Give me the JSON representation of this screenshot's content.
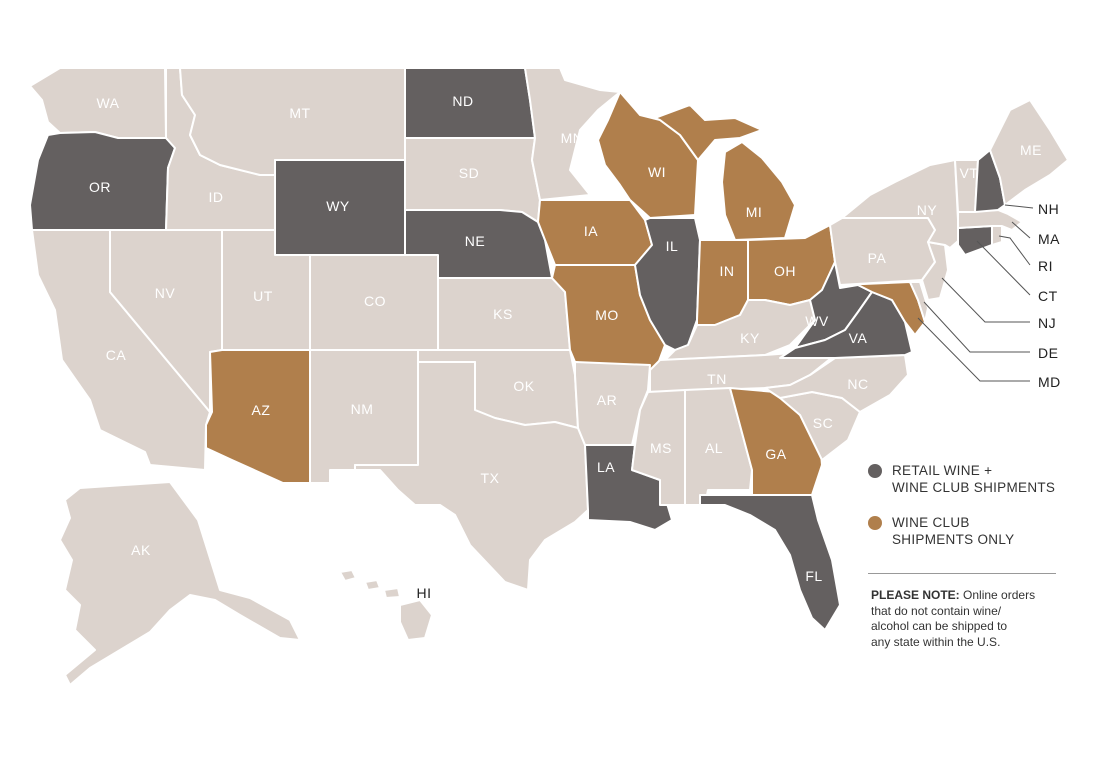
{
  "colors": {
    "none": "#dcd3cd",
    "retail": "#646060",
    "club": "#b07f4c"
  },
  "states": {
    "WA": "WA",
    "OR": "OR",
    "CA": "CA",
    "ID": "ID",
    "NV": "NV",
    "MT": "MT",
    "WY": "WY",
    "UT": "UT",
    "AZ": "AZ",
    "CO": "CO",
    "NM": "NM",
    "ND": "ND",
    "SD": "SD",
    "NE": "NE",
    "KS": "KS",
    "OK": "OK",
    "TX": "TX",
    "MN": "MN",
    "IA": "IA",
    "MO": "MO",
    "AR": "AR",
    "LA": "LA",
    "WI": "WI",
    "IL": "IL",
    "MI": "MI",
    "IN": "IN",
    "OH": "OH",
    "KY": "KY",
    "TN": "TN",
    "MS": "MS",
    "AL": "AL",
    "GA": "GA",
    "FL": "FL",
    "SC": "SC",
    "NC": "NC",
    "VA": "VA",
    "WV": "WV",
    "PA": "PA",
    "NY": "NY",
    "VT": "VT",
    "ME": "ME",
    "AK": "AK",
    "HI": "HI",
    "NH": "NH",
    "MA": "MA",
    "RI": "RI",
    "CT": "CT",
    "NJ": "NJ",
    "DE": "DE",
    "MD": "MD"
  },
  "status": {
    "retail": [
      "OR",
      "WY",
      "ND",
      "NE",
      "IL",
      "LA",
      "FL",
      "WV",
      "VA",
      "NH",
      "CT"
    ],
    "club": [
      "AZ",
      "IA",
      "MO",
      "WI",
      "MI",
      "IN",
      "OH",
      "GA",
      "MD"
    ]
  },
  "legend": {
    "retail_line1": "RETAIL WINE +",
    "retail_line2": "WINE CLUB SHIPMENTS",
    "club_line1": "WINE CLUB",
    "club_line2": "SHIPMENTS ONLY"
  },
  "note": {
    "heading": "PLEASE NOTE:",
    "line1": "Online orders",
    "line2": "that do not contain wine/",
    "line3": "alcohol can be shipped to",
    "line4": "any state within the U.S."
  }
}
